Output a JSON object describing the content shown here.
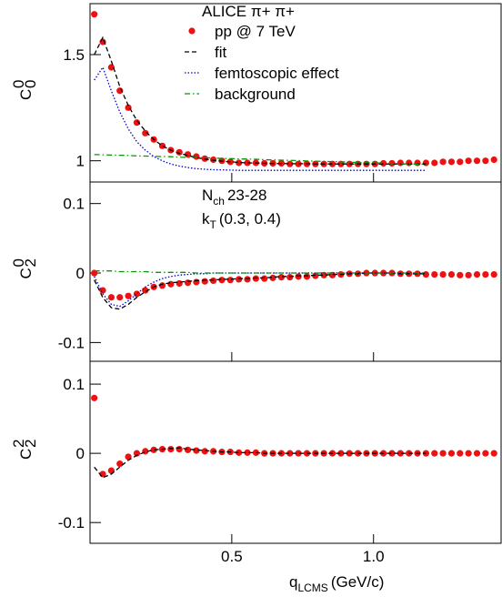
{
  "chart_data": [
    {
      "type": "scatter",
      "legend_title": "ALICE  π+ π+",
      "ylabel": {
        "base": "C",
        "sup": "0",
        "sub": "0"
      },
      "xlim": [
        0,
        1.45
      ],
      "ylim": [
        0.9,
        1.74
      ],
      "yticks": [
        1,
        1.5
      ],
      "x": [
        0.015,
        0.045,
        0.075,
        0.105,
        0.135,
        0.165,
        0.195,
        0.225,
        0.255,
        0.285,
        0.315,
        0.345,
        0.375,
        0.405,
        0.435,
        0.465,
        0.495,
        0.525,
        0.555,
        0.585,
        0.615,
        0.645,
        0.675,
        0.705,
        0.735,
        0.765,
        0.795,
        0.825,
        0.855,
        0.885,
        0.915,
        0.945,
        0.975,
        1.005,
        1.035,
        1.065,
        1.095,
        1.125,
        1.155,
        1.185,
        1.215,
        1.245,
        1.275,
        1.305,
        1.335,
        1.365,
        1.395,
        1.425
      ],
      "series": [
        {
          "name": "pp @ 7 TeV",
          "style": "points",
          "color": "#ee1111",
          "values": [
            1.69,
            1.56,
            1.44,
            1.33,
            1.25,
            1.18,
            1.13,
            1.1,
            1.07,
            1.05,
            1.04,
            1.03,
            1.02,
            1.01,
            1.005,
            1.0,
            0.995,
            0.99,
            0.99,
            0.99,
            0.988,
            0.988,
            0.988,
            0.985,
            0.985,
            0.985,
            0.985,
            0.985,
            0.985,
            0.985,
            0.985,
            0.985,
            0.985,
            0.985,
            0.988,
            0.988,
            0.99,
            0.99,
            0.99,
            0.99,
            0.99,
            0.995,
            0.995,
            0.995,
            1.0,
            1.0,
            1.0,
            1.005
          ]
        },
        {
          "name": "fit",
          "style": "dash",
          "color": "#000000",
          "values": [
            1.5,
            1.58,
            1.47,
            1.35,
            1.26,
            1.19,
            1.14,
            1.1,
            1.07,
            1.05,
            1.035,
            1.025,
            1.015,
            1.008,
            1.002,
            0.998,
            0.995,
            0.992,
            0.99,
            0.989,
            0.988,
            0.987,
            0.987,
            0.986,
            0.986,
            0.986,
            0.985,
            0.985,
            0.985,
            0.985,
            0.985,
            0.985,
            0.985,
            0.985,
            0.985,
            0.985,
            0.985,
            0.985,
            0.985,
            0.985,
            null,
            null,
            null,
            null,
            null,
            null,
            null,
            null
          ]
        },
        {
          "name": "femtoscopic effect",
          "style": "dot",
          "color": "#0000cc",
          "values": [
            1.38,
            1.44,
            1.33,
            1.23,
            1.15,
            1.09,
            1.05,
            1.02,
            1.0,
            0.985,
            0.975,
            0.968,
            0.963,
            0.96,
            0.958,
            0.957,
            0.956,
            0.955,
            0.955,
            0.955,
            0.955,
            0.955,
            0.955,
            0.955,
            0.955,
            0.955,
            0.955,
            0.955,
            0.955,
            0.955,
            0.955,
            0.955,
            0.955,
            0.955,
            0.955,
            0.955,
            0.955,
            0.955,
            0.955,
            0.955,
            null,
            null,
            null,
            null,
            null,
            null,
            null,
            null
          ]
        },
        {
          "name": "background",
          "style": "dashdot",
          "color": "#009900",
          "values": [
            1.029,
            1.028,
            1.027,
            1.026,
            1.025,
            1.023,
            1.022,
            1.021,
            1.02,
            1.019,
            1.017,
            1.016,
            1.015,
            1.014,
            1.013,
            1.011,
            1.01,
            1.009,
            1.008,
            1.007,
            1.005,
            1.004,
            1.003,
            1.002,
            1.001,
            0.999,
            0.998,
            0.997,
            0.996,
            0.995,
            0.993,
            0.992,
            0.991,
            0.99,
            0.989,
            0.987,
            0.986,
            0.985,
            0.984,
            0.983,
            null,
            null,
            null,
            null,
            null,
            null,
            null,
            null
          ]
        }
      ]
    },
    {
      "type": "scatter",
      "ylabel": {
        "base": "C",
        "sup": "0",
        "sub": "2"
      },
      "annotations": [
        {
          "text": "N",
          "sub": "ch",
          "rest": "23-28"
        },
        {
          "text": "k",
          "sub": "T",
          "rest": "(0.3, 0.4)"
        }
      ],
      "xlim": [
        0,
        1.45
      ],
      "ylim": [
        -0.127,
        0.131
      ],
      "yticks": [
        0.1,
        0,
        -0.1
      ],
      "x": [
        0.015,
        0.045,
        0.075,
        0.105,
        0.135,
        0.165,
        0.195,
        0.225,
        0.255,
        0.285,
        0.315,
        0.345,
        0.375,
        0.405,
        0.435,
        0.465,
        0.495,
        0.525,
        0.555,
        0.585,
        0.615,
        0.645,
        0.675,
        0.705,
        0.735,
        0.765,
        0.795,
        0.825,
        0.855,
        0.885,
        0.915,
        0.945,
        0.975,
        1.005,
        1.035,
        1.065,
        1.095,
        1.125,
        1.155,
        1.185,
        1.215,
        1.245,
        1.275,
        1.305,
        1.335,
        1.365,
        1.395,
        1.425
      ],
      "series": [
        {
          "style": "points",
          "color": "#ee1111",
          "values": [
            0.0,
            -0.025,
            -0.035,
            -0.035,
            -0.033,
            -0.03,
            -0.025,
            -0.02,
            -0.018,
            -0.016,
            -0.015,
            -0.014,
            -0.013,
            -0.012,
            -0.011,
            -0.01,
            -0.01,
            -0.009,
            -0.009,
            -0.008,
            -0.008,
            -0.007,
            -0.006,
            -0.006,
            -0.005,
            -0.005,
            -0.004,
            -0.003,
            -0.003,
            -0.002,
            -0.001,
            -0.001,
            0.0,
            0.0,
            0.0,
            0.0,
            -0.001,
            -0.001,
            -0.001,
            -0.002,
            -0.002,
            -0.002,
            -0.002,
            -0.003,
            -0.003,
            -0.002,
            -0.002,
            -0.002
          ]
        },
        {
          "style": "dash",
          "color": "#000000",
          "values": [
            -0.01,
            -0.035,
            -0.05,
            -0.052,
            -0.045,
            -0.035,
            -0.027,
            -0.02,
            -0.016,
            -0.014,
            -0.013,
            -0.012,
            -0.011,
            -0.01,
            -0.01,
            -0.009,
            -0.009,
            -0.008,
            -0.008,
            -0.007,
            -0.007,
            -0.006,
            -0.005,
            -0.005,
            -0.004,
            -0.004,
            -0.003,
            -0.003,
            -0.002,
            -0.002,
            -0.001,
            -0.001,
            0.0,
            0.0,
            0.0,
            0.0,
            -0.001,
            -0.001,
            -0.001,
            -0.001,
            null,
            null,
            null,
            null,
            null,
            null,
            null,
            null
          ]
        },
        {
          "style": "dot",
          "color": "#0000cc",
          "values": [
            -0.005,
            -0.03,
            -0.045,
            -0.048,
            -0.04,
            -0.03,
            -0.02,
            -0.013,
            -0.008,
            -0.005,
            -0.003,
            -0.002,
            -0.001,
            -0.001,
            0.0,
            0.0,
            0.0,
            0.0,
            0.0,
            0.0,
            0.0,
            0.0,
            0.0,
            0.0,
            0.0,
            0.0,
            0.0,
            0.0,
            0.0,
            0.0,
            0.0,
            0.0,
            0.0,
            0.0,
            0.0,
            0.0,
            0.0,
            0.0,
            0.0,
            0.0,
            null,
            null,
            null,
            null,
            null,
            null,
            null,
            null
          ]
        },
        {
          "style": "dashdot",
          "color": "#009900",
          "values": [
            0.003,
            0.003,
            0.003,
            0.002,
            0.002,
            0.002,
            0.002,
            0.001,
            0.001,
            0.001,
            0.001,
            0.001,
            0.0,
            0.0,
            0.0,
            0.0,
            0.0,
            0.0,
            0.0,
            0.0,
            0.0,
            0.0,
            0.0,
            0.0,
            0.0,
            0.0,
            0.0,
            0.0,
            0.0,
            0.0,
            0.0,
            0.0,
            0.0,
            0.0,
            0.0,
            0.0,
            0.0,
            0.0,
            0.0,
            0.0,
            null,
            null,
            null,
            null,
            null,
            null,
            null,
            null
          ]
        }
      ]
    },
    {
      "type": "scatter",
      "ylabel": {
        "base": "C",
        "sup": "2",
        "sub": "2"
      },
      "xlabel": {
        "text": "q",
        "sub": "LCMS",
        "rest": "(GeV/c)"
      },
      "xlim": [
        0,
        1.45
      ],
      "xticks": [
        0.5,
        {
          "value": 1,
          "label": "1.0"
        }
      ],
      "ylim": [
        -0.13,
        0.133
      ],
      "yticks": [
        0.1,
        0,
        -0.1
      ],
      "x": [
        0.015,
        0.045,
        0.075,
        0.105,
        0.135,
        0.165,
        0.195,
        0.225,
        0.255,
        0.285,
        0.315,
        0.345,
        0.375,
        0.405,
        0.435,
        0.465,
        0.495,
        0.525,
        0.555,
        0.585,
        0.615,
        0.645,
        0.675,
        0.705,
        0.735,
        0.765,
        0.795,
        0.825,
        0.855,
        0.885,
        0.915,
        0.945,
        0.975,
        1.005,
        1.035,
        1.065,
        1.095,
        1.125,
        1.155,
        1.185,
        1.215,
        1.245,
        1.275,
        1.305,
        1.335,
        1.365,
        1.395,
        1.425
      ],
      "series": [
        {
          "style": "points",
          "color": "#ee1111",
          "values": [
            0.08,
            -0.03,
            -0.025,
            -0.015,
            -0.005,
            0.0,
            0.003,
            0.005,
            0.006,
            0.006,
            0.006,
            0.005,
            0.004,
            0.003,
            0.003,
            0.002,
            0.002,
            0.001,
            0.001,
            0.001,
            0.0,
            0.0,
            0.0,
            0.0,
            0.0,
            0.0,
            0.0,
            0.0,
            0.0,
            0.0,
            0.0,
            0.0,
            0.0,
            0.0,
            0.0,
            0.0,
            0.0,
            0.0,
            0.0,
            0.0,
            0.0,
            0.0,
            0.0,
            0.0,
            0.0,
            0.0,
            0.0,
            0.0
          ]
        },
        {
          "style": "dash",
          "color": "#000000",
          "values": [
            -0.02,
            -0.035,
            -0.03,
            -0.02,
            -0.01,
            -0.003,
            0.002,
            0.005,
            0.006,
            0.007,
            0.008,
            0.006,
            0.005,
            0.004,
            0.003,
            0.002,
            0.002,
            0.001,
            0.001,
            0.001,
            0.0,
            0.0,
            0.0,
            0.0,
            0.0,
            0.0,
            0.0,
            0.0,
            0.0,
            0.0,
            0.0,
            0.0,
            0.0,
            0.0,
            0.0,
            0.0,
            0.0,
            0.0,
            0.0,
            0.0,
            null,
            null,
            null,
            null,
            null,
            null,
            null,
            null
          ]
        }
      ]
    }
  ]
}
